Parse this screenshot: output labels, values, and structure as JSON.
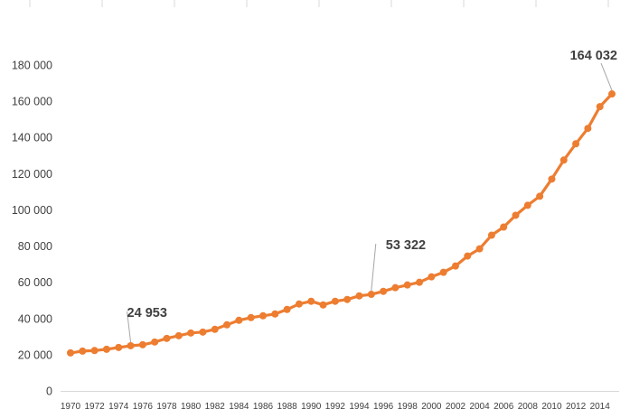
{
  "chart_data": {
    "type": "line",
    "title": "",
    "xlabel": "",
    "ylabel": "",
    "ylim": [
      0,
      180000
    ],
    "y_ticks": [
      "0",
      "20 000",
      "40 000",
      "60 000",
      "80 000",
      "100 000",
      "120 000",
      "140 000",
      "160 000",
      "180 000"
    ],
    "x_tick_labels": [
      "1970",
      "1972",
      "1974",
      "1976",
      "1978",
      "1980",
      "1982",
      "1984",
      "1986",
      "1988",
      "1990",
      "1992",
      "1994",
      "1996",
      "1998",
      "2000",
      "2002",
      "2004",
      "2006",
      "2008",
      "2010",
      "2012",
      "2014"
    ],
    "grid": false,
    "legend": "none",
    "series_color": "#ED7D31",
    "x": [
      1970,
      1971,
      1972,
      1973,
      1974,
      1975,
      1976,
      1977,
      1978,
      1979,
      1980,
      1981,
      1982,
      1983,
      1984,
      1985,
      1986,
      1987,
      1988,
      1989,
      1990,
      1991,
      1992,
      1993,
      1994,
      1995,
      1996,
      1997,
      1998,
      1999,
      2000,
      2001,
      2002,
      2003,
      2004,
      2005,
      2006,
      2007,
      2008,
      2009,
      2010,
      2011,
      2012,
      2013,
      2014,
      2015
    ],
    "values": [
      21000,
      22000,
      22300,
      23000,
      24000,
      24953,
      25500,
      27000,
      29000,
      30500,
      32000,
      32500,
      34000,
      36500,
      39000,
      40500,
      41500,
      42500,
      45000,
      48000,
      49500,
      47500,
      49500,
      50500,
      52500,
      53322,
      55000,
      57000,
      58500,
      60000,
      63000,
      65500,
      69000,
      74500,
      78500,
      86000,
      90500,
      97000,
      102500,
      107500,
      117000,
      127500,
      136500,
      145000,
      157000,
      164032
    ],
    "annotations": [
      {
        "x": 1975,
        "label": "24 953"
      },
      {
        "x": 1995,
        "label": "53 322"
      },
      {
        "x": 2015,
        "label": "164 032"
      }
    ]
  }
}
